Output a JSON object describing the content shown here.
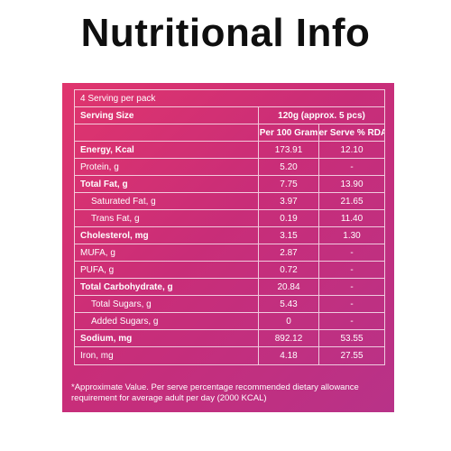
{
  "title": "Nutritional Info",
  "table": {
    "servings_per_pack": "4 Serving per pack",
    "serving_size_label": "Serving Size",
    "serving_size_value": "120g (approx. 5 pcs)",
    "col_per_100": "Per 100 Gram",
    "col_per_serve": "Per Serve % RDA*",
    "rows": [
      {
        "name": "Energy, Kcal",
        "per100": "173.91",
        "rda": "12.10",
        "bold": true,
        "indent": false
      },
      {
        "name": "Protein, g",
        "per100": "5.20",
        "rda": "-",
        "bold": false,
        "indent": false
      },
      {
        "name": "Total Fat, g",
        "per100": "7.75",
        "rda": "13.90",
        "bold": true,
        "indent": false
      },
      {
        "name": "Saturated Fat, g",
        "per100": "3.97",
        "rda": "21.65",
        "bold": false,
        "indent": true
      },
      {
        "name": "Trans Fat, g",
        "per100": "0.19",
        "rda": "11.40",
        "bold": false,
        "indent": true
      },
      {
        "name": "Cholesterol, mg",
        "per100": "3.15",
        "rda": "1.30",
        "bold": true,
        "indent": false
      },
      {
        "name": "MUFA, g",
        "per100": "2.87",
        "rda": "-",
        "bold": false,
        "indent": false
      },
      {
        "name": "PUFA, g",
        "per100": "0.72",
        "rda": "-",
        "bold": false,
        "indent": false
      },
      {
        "name": "Total Carbohydrate, g",
        "per100": "20.84",
        "rda": "-",
        "bold": true,
        "indent": false
      },
      {
        "name": "Total Sugars, g",
        "per100": "5.43",
        "rda": "-",
        "bold": false,
        "indent": true
      },
      {
        "name": "Added Sugars, g",
        "per100": "0",
        "rda": "-",
        "bold": false,
        "indent": true
      },
      {
        "name": "Sodium, mg",
        "per100": "892.12",
        "rda": "53.55",
        "bold": true,
        "indent": false
      },
      {
        "name": "Iron, mg",
        "per100": "4.18",
        "rda": "27.55",
        "bold": false,
        "indent": false
      }
    ]
  },
  "footnote": "*Approximate Value. Per serve percentage recommended dietary allowance requirement for average adult per day (2000 KCAL)",
  "colors": {
    "panel_start": "#e0356d",
    "panel_end": "#b83288",
    "text": "#ffffff"
  }
}
